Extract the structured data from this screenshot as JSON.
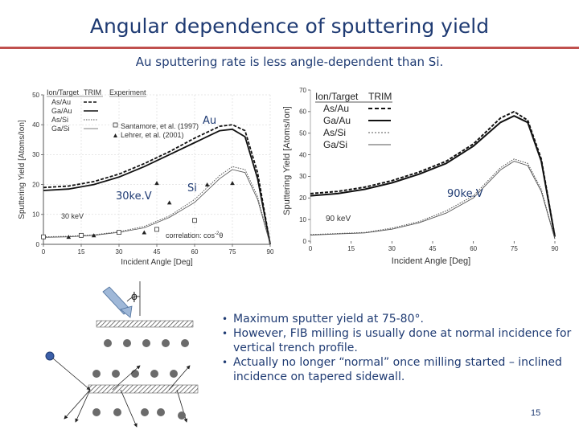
{
  "slide": {
    "title": "Angular dependence of sputtering yield",
    "subtitle": "Au sputtering rate is less angle-dependent than Si.",
    "page_number": "15",
    "accent_color": "#c0504d",
    "text_color": "#1f3b73"
  },
  "overlays": {
    "au": "Au",
    "si": "Si",
    "kev30": "30ke.V",
    "kev90": "90ke.V"
  },
  "bullets": [
    "Maximum sputter yield at 75-80°.",
    "However, FIB milling is usually done at normal incidence for vertical trench profile.",
    "Actually no longer “normal” once milling started – inclined incidence on tapered sidewall."
  ],
  "diagram": {
    "angle_symbol": "ϕ"
  },
  "chart_data": [
    {
      "type": "line",
      "panel": "30 keV",
      "xlabel": "Incident Angle [Deg]",
      "ylabel": "Sputtering Yield [Atoms/Ion]",
      "xlim": [
        0,
        90
      ],
      "ylim": [
        0,
        50
      ],
      "xticks": [
        "0",
        "15",
        "30",
        "45",
        "60",
        "75",
        "90"
      ],
      "yticks": [
        "0",
        "10",
        "20",
        "30",
        "40",
        "50"
      ],
      "legend": {
        "header": [
          "Ion/Target",
          "TRIM",
          "Experiment"
        ],
        "position": "top-left"
      },
      "annotations": [
        "30 keV",
        "correlation: cos",
        "-2",
        "θ"
      ],
      "series": [
        {
          "name": "As/Au",
          "style": "dashed-bold",
          "x": [
            0,
            10,
            20,
            30,
            40,
            50,
            60,
            70,
            75,
            80,
            85,
            90
          ],
          "y": [
            19,
            19.5,
            21,
            23.5,
            27,
            31,
            35.5,
            39.5,
            40,
            38,
            24,
            0
          ]
        },
        {
          "name": "Ga/Au",
          "style": "solid-bold",
          "x": [
            0,
            10,
            20,
            30,
            40,
            50,
            60,
            70,
            75,
            80,
            85,
            90
          ],
          "y": [
            18,
            18.5,
            20,
            22.5,
            26,
            30,
            34,
            38,
            38.5,
            36,
            22,
            0
          ]
        },
        {
          "name": "As/Si",
          "style": "dotted",
          "x": [
            0,
            10,
            20,
            30,
            40,
            50,
            60,
            70,
            75,
            80,
            85,
            90
          ],
          "y": [
            2.5,
            2.7,
            3.2,
            4.2,
            6,
            9.5,
            15,
            23,
            26,
            25,
            16,
            0
          ]
        },
        {
          "name": "Ga/Si",
          "style": "solid-thin",
          "x": [
            0,
            10,
            20,
            30,
            40,
            50,
            60,
            70,
            75,
            80,
            85,
            90
          ],
          "y": [
            2.3,
            2.5,
            3,
            4,
            5.5,
            9,
            14,
            22,
            25,
            24,
            15,
            0
          ]
        }
      ],
      "experiments": [
        {
          "name": "Santamore, et al. (1997)",
          "marker": "open-square",
          "points": [
            [
              0,
              2.5
            ],
            [
              15,
              3
            ],
            [
              30,
              4
            ],
            [
              45,
              5
            ],
            [
              60,
              8
            ]
          ]
        },
        {
          "name": "Lehrer, et al. (2001)",
          "marker": "filled-triangle",
          "points": [
            [
              10,
              2.5
            ],
            [
              20,
              3
            ],
            [
              40,
              4
            ],
            [
              45,
              20.5
            ],
            [
              65,
              20
            ],
            [
              75,
              20.5
            ],
            [
              50,
              14
            ]
          ]
        }
      ]
    },
    {
      "type": "line",
      "panel": "90 keV",
      "xlabel": "Incident Angle [Deg]",
      "ylabel": "Sputtering Yield [Atoms/Ion]",
      "xlim": [
        0,
        90
      ],
      "ylim": [
        0,
        70
      ],
      "xticks": [
        "0",
        "15",
        "30",
        "45",
        "60",
        "75",
        "90"
      ],
      "yticks": [
        "0",
        "10",
        "20",
        "30",
        "40",
        "50",
        "60",
        "70"
      ],
      "legend": {
        "header": [
          "Ion/Target",
          "TRIM"
        ],
        "position": "top-left"
      },
      "annotations": [
        "90 keV"
      ],
      "series": [
        {
          "name": "As/Au",
          "style": "dashed-bold",
          "x": [
            0,
            10,
            20,
            30,
            40,
            50,
            60,
            70,
            75,
            80,
            85,
            90
          ],
          "y": [
            22,
            23,
            25,
            28,
            32,
            37,
            45,
            57,
            60,
            56,
            38,
            2
          ]
        },
        {
          "name": "Ga/Au",
          "style": "solid-bold",
          "x": [
            0,
            10,
            20,
            30,
            40,
            50,
            60,
            70,
            75,
            80,
            85,
            90
          ],
          "y": [
            21,
            22,
            24,
            27,
            31,
            36,
            44,
            55,
            58,
            55,
            37,
            2
          ]
        },
        {
          "name": "As/Si",
          "style": "dotted",
          "x": [
            0,
            10,
            20,
            30,
            40,
            50,
            60,
            70,
            75,
            80,
            85,
            90
          ],
          "y": [
            3,
            3.5,
            4,
            6,
            9,
            14,
            21,
            34,
            38,
            36,
            24,
            1
          ]
        },
        {
          "name": "Ga/Si",
          "style": "solid-thin",
          "x": [
            0,
            10,
            20,
            30,
            40,
            50,
            60,
            70,
            75,
            80,
            85,
            90
          ],
          "y": [
            2.8,
            3.3,
            3.8,
            5.5,
            8.5,
            13,
            20,
            33,
            37,
            35,
            23,
            1
          ]
        }
      ]
    }
  ]
}
